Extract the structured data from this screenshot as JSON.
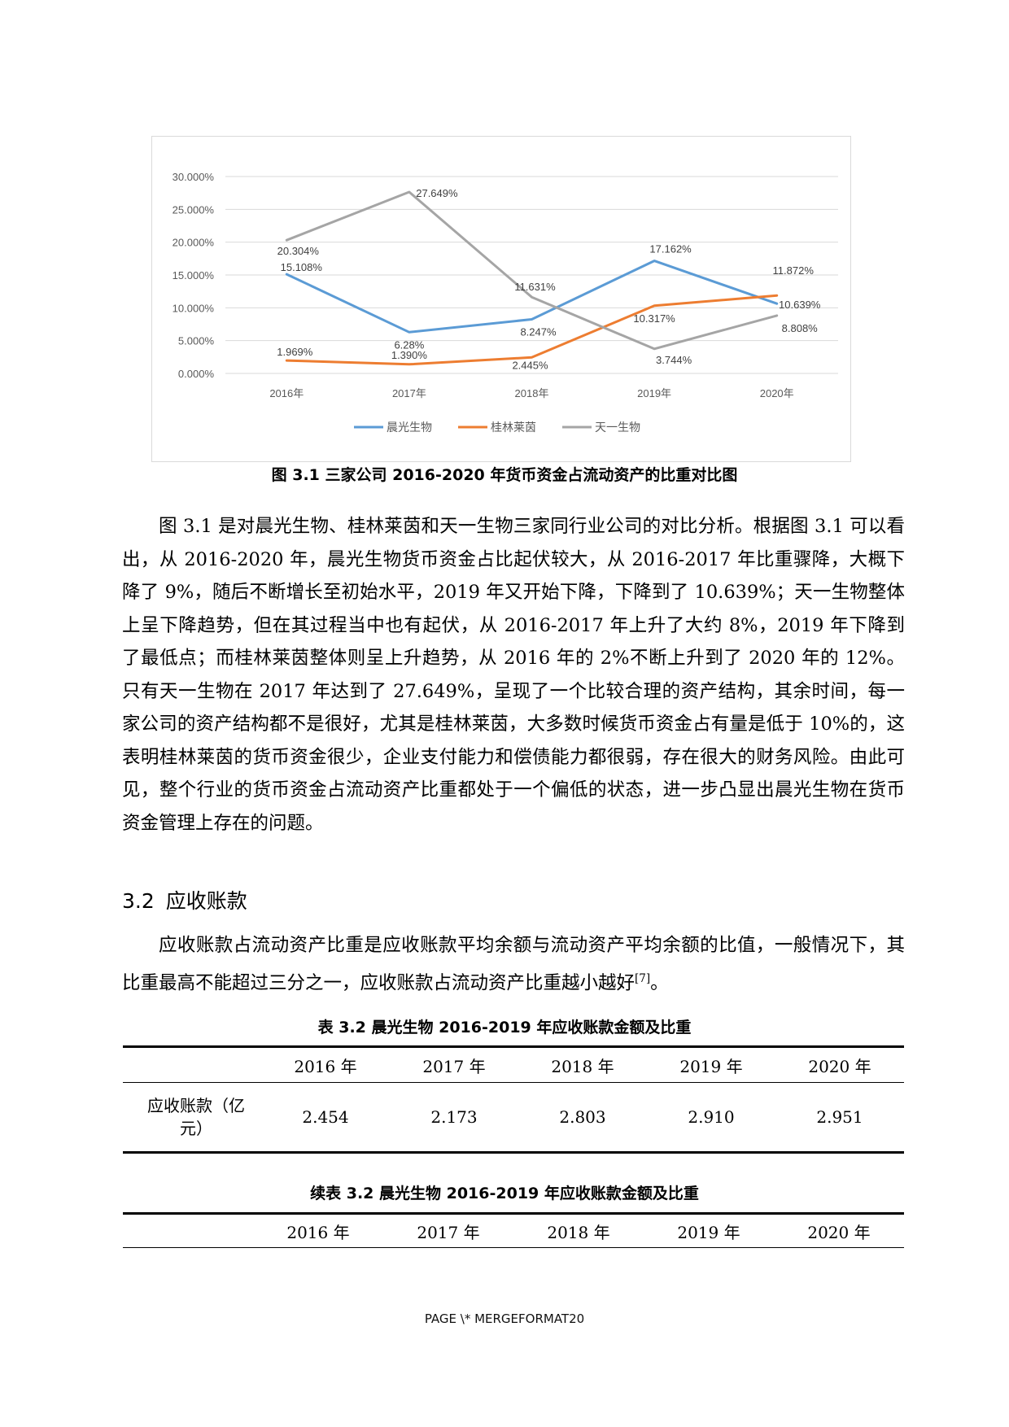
{
  "figure": {
    "caption": "图 3.1  三家公司 2016-2020 年货币资金占流动资产的比重对比图"
  },
  "chart_data": {
    "type": "line",
    "categories": [
      "2016年",
      "2017年",
      "2018年",
      "2019年",
      "2020年"
    ],
    "y_ticks": [
      "30.000%",
      "25.000%",
      "20.000%",
      "15.000%",
      "10.000%",
      "5.000%",
      "0.000%"
    ],
    "ylim": [
      0,
      30
    ],
    "grid": true,
    "legend_position": "bottom",
    "series": [
      {
        "name": "晨光生物",
        "color": "#5b9bd5",
        "values": [
          15.108,
          6.28,
          8.247,
          17.162,
          10.639
        ],
        "labels": [
          "15.108%",
          "6.28%",
          "8.247%",
          "17.162%",
          "10.639%"
        ]
      },
      {
        "name": "桂林莱茵",
        "color": "#ed7d31",
        "values": [
          1.969,
          1.39,
          2.445,
          10.317,
          11.872
        ],
        "labels": [
          "1.969%",
          "1.390%",
          "2.445%",
          "10.317%",
          "11.872%"
        ]
      },
      {
        "name": "天一生物",
        "color": "#a5a5a5",
        "values": [
          20.304,
          27.649,
          11.631,
          3.744,
          8.808
        ],
        "labels": [
          "20.304%",
          "27.649%",
          "11.631%",
          "3.744%",
          "8.808%"
        ]
      }
    ]
  },
  "paragraph1": "图 3.1 是对晨光生物、桂林莱茵和天一生物三家同行业公司的对比分析。根据图 3.1 可以看出，从 2016-2020 年，晨光生物货币资金占比起伏较大，从 2016-2017 年比重骤降，大概下降了 9%，随后不断增长至初始水平，2019 年又开始下降，下降到了 10.639%；天一生物整体上呈下降趋势，但在其过程当中也有起伏，从 2016-2017 年上升了大约 8%，2019 年下降到了最低点；而桂林莱茵整体则呈上升趋势，从 2016 年的 2%不断上升到了 2020 年的 12%。只有天一生物在 2017 年达到了 27.649%，呈现了一个比较合理的资产结构，其余时间，每一家公司的资产结构都不是很好，尤其是桂林莱茵，大多数时候货币资金占有量是低于 10%的，这表明桂林莱茵的货币资金很少，企业支付能力和偿债能力都很弱，存在很大的财务风险。由此可见，整个行业的货币资金占流动资产比重都处于一个偏低的状态，进一步凸显出晨光生物在货币资金管理上存在的问题。",
  "section": {
    "number": "3.2",
    "title": "应收账款"
  },
  "paragraph2": "应收账款占流动资产比重是应收账款平均余额与流动资产平均余额的比值，一般情况下，其比重最高不能超过三分之一，应收账款占流动资产比重越小越好",
  "paragraph2_cite": "[7]",
  "paragraph2_end": "。",
  "table1": {
    "title": "表 3.2  晨光生物 2016-2019 年应收账款金额及比重",
    "headers": [
      "",
      "2016 年",
      "2017 年",
      "2018 年",
      "2019 年",
      "2020 年"
    ],
    "row_label": "应收账款（亿元）",
    "values": [
      "2.454",
      "2.173",
      "2.803",
      "2.910",
      "2.951"
    ]
  },
  "table2": {
    "title": "续表 3.2 晨光生物 2016-2019 年应收账款金额及比重",
    "headers": [
      "",
      "2016 年",
      "2017 年",
      "2018 年",
      "2019 年",
      "2020 年"
    ]
  },
  "footer": "PAGE   \\* MERGEFORMAT20"
}
